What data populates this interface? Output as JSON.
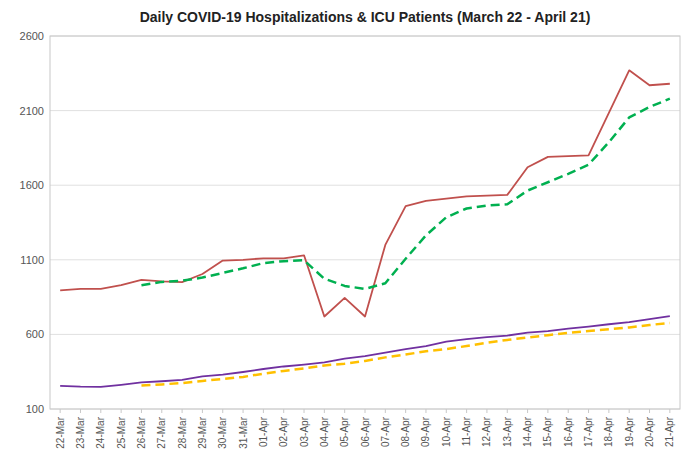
{
  "chart_data": {
    "type": "line",
    "title": "Daily COVID-19 Hospitalizations & ICU Patients (March 22 - April 21)",
    "categories": [
      "22-Mar",
      "23-Mar",
      "24-Mar",
      "25-Mar",
      "26-Mar",
      "27-Mar",
      "28-Mar",
      "29-Mar",
      "30-Mar",
      "31-Mar",
      "01-Apr",
      "02-Apr",
      "03-Apr",
      "04-Apr",
      "05-Apr",
      "06-Apr",
      "07-Apr",
      "08-Apr",
      "09-Apr",
      "10-Apr",
      "11-Apr",
      "12-Apr",
      "13-Apr",
      "14-Apr",
      "15-Apr",
      "16-Apr",
      "17-Apr",
      "18-Apr",
      "19-Apr",
      "20-Apr",
      "21-Apr"
    ],
    "series": [
      {
        "color": "#c0504d",
        "line_style": "solid",
        "values": [
          895,
          905,
          905,
          930,
          965,
          955,
          950,
          1005,
          1095,
          1100,
          1110,
          1110,
          1130,
          720,
          845,
          720,
          1200,
          1460,
          1495,
          1510,
          1525,
          1530,
          1535,
          1720,
          1790,
          1795,
          1800,
          2085,
          2370,
          2270,
          2280
        ]
      },
      {
        "color": "#00b050",
        "line_style": "dashed",
        "values": [
          null,
          null,
          null,
          null,
          930,
          952,
          960,
          981,
          1012,
          1043,
          1078,
          1091,
          1097,
          973,
          925,
          905,
          943,
          1107,
          1264,
          1385,
          1444,
          1464,
          1472,
          1564,
          1620,
          1676,
          1738,
          1888,
          2054,
          2124,
          2180
        ]
      },
      {
        "color": "#7030a0",
        "line_style": "solid",
        "values": [
          255,
          250,
          248,
          262,
          278,
          286,
          295,
          318,
          330,
          348,
          368,
          385,
          398,
          412,
          438,
          455,
          478,
          502,
          522,
          552,
          568,
          582,
          592,
          612,
          622,
          638,
          652,
          668,
          682,
          702,
          722
        ]
      },
      {
        "color": "#ffc000",
        "line_style": "dashed",
        "values": [
          null,
          null,
          null,
          null,
          258,
          265,
          274,
          288,
          301,
          315,
          337,
          355,
          372,
          392,
          404,
          422,
          446,
          465,
          487,
          502,
          522,
          544,
          563,
          579,
          595,
          611,
          623,
          634,
          647,
          663,
          677
        ]
      }
    ],
    "ylim": [
      100,
      2600
    ],
    "yticks": [
      100,
      600,
      1100,
      1600,
      2100,
      2600
    ],
    "grid": true
  }
}
